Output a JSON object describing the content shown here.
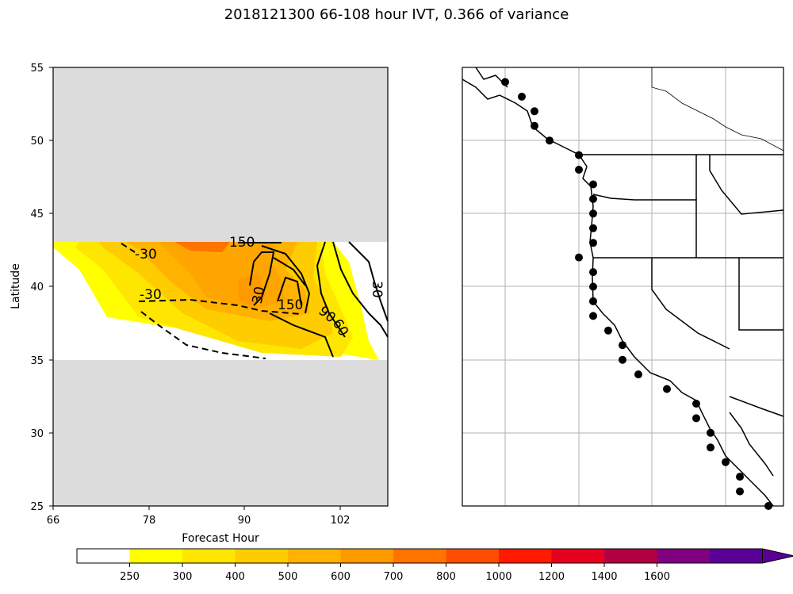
{
  "title": "2018121300 66-108 hour IVT, 0.366 of variance",
  "chart_data": [
    {
      "type": "heatmap",
      "xlabel": "Forecast Hour",
      "ylabel": "Latitude",
      "xlim": [
        66,
        108
      ],
      "ylim": [
        25,
        55
      ],
      "xticks": [
        "66",
        "78",
        "90",
        "102"
      ],
      "yticks": [
        "25",
        "30",
        "35",
        "40",
        "45",
        "50",
        "55"
      ],
      "data_band_lat": [
        35,
        43
      ],
      "no_data_color": "#dcdcdc",
      "filled_levels_description": "IVT filled contours 250-700",
      "contour_labels": [
        "150",
        "-30",
        "-30",
        "30",
        "150",
        "90",
        "60",
        "30"
      ],
      "contour_label_values": [
        150,
        -30,
        -30,
        30,
        150,
        90,
        60,
        30
      ]
    },
    {
      "type": "scatter",
      "description_points": "coastal points",
      "points_lat": [
        54,
        53,
        52,
        51,
        50,
        49,
        48,
        47,
        46,
        45,
        44,
        43,
        42,
        41,
        40,
        39,
        38,
        37,
        36,
        35,
        34,
        33,
        32,
        31,
        30,
        29,
        28,
        27,
        26,
        25
      ]
    }
  ],
  "colorbar": {
    "labels": [
      "250",
      "300",
      "400",
      "500",
      "600",
      "700",
      "800",
      "1000",
      "1200",
      "1400",
      "1600"
    ],
    "colors": [
      "#ffffff",
      "#ffff00",
      "#ffe600",
      "#ffcc00",
      "#ffb300",
      "#ff9900",
      "#ff7300",
      "#ff4d00",
      "#ff1a00",
      "#e60020",
      "#b30040",
      "#800080",
      "#5a0096"
    ]
  }
}
